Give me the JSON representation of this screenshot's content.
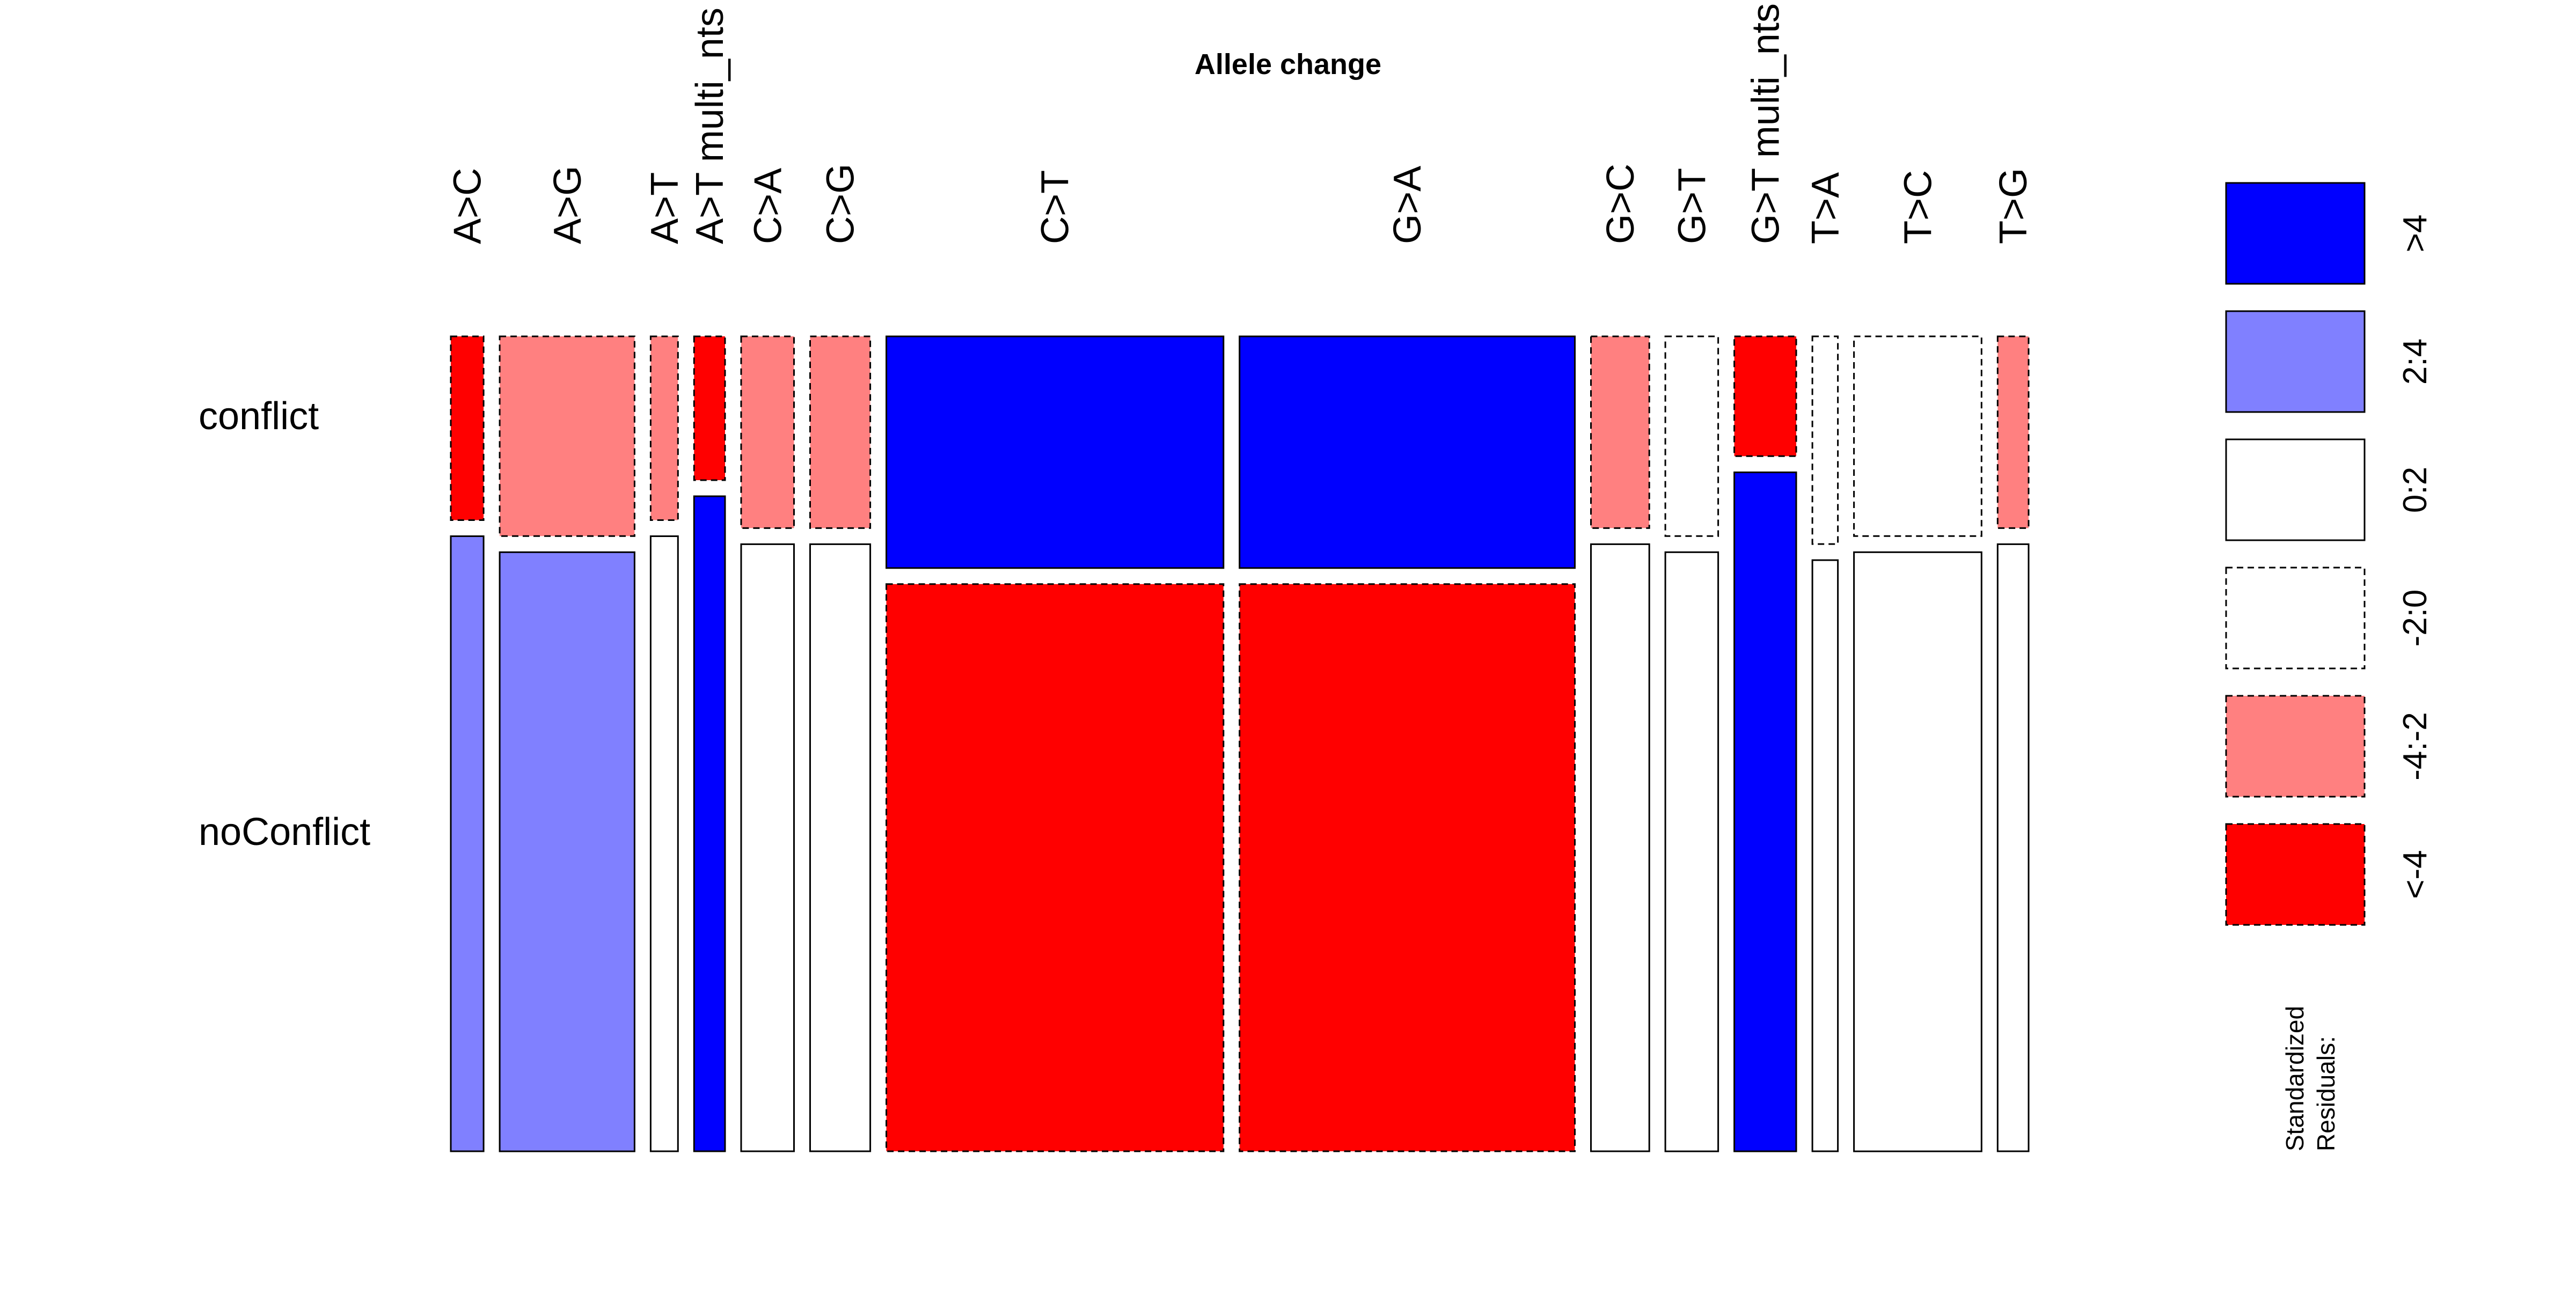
{
  "chart_data": {
    "type": "mosaic",
    "title": "Allele change",
    "column_variable_categories": [
      "A>C",
      "A>G",
      "A>T",
      "A>T multi_nts",
      "C>A",
      "C>G",
      "C>T",
      "G>A",
      "G>C",
      "G>T",
      "G>T multi_nts",
      "T>A",
      "T>C",
      "T>G"
    ],
    "row_variable_categories": [
      "conflict",
      "noConflict"
    ],
    "column_share_of_total": [
      0.018,
      0.074,
      0.015,
      0.017,
      0.029,
      0.033,
      0.185,
      0.184,
      0.032,
      0.029,
      0.034,
      0.014,
      0.07,
      0.017
    ],
    "conflict_share_within_column": [
      0.23,
      0.25,
      0.23,
      0.18,
      0.24,
      0.24,
      0.29,
      0.29,
      0.24,
      0.25,
      0.15,
      0.26,
      0.25,
      0.24
    ],
    "residual_class": [
      [
        "<-4",
        "2:4"
      ],
      [
        "-4:-2",
        "2:4"
      ],
      [
        "-4:-2",
        "0:2"
      ],
      [
        "<-4",
        ">4"
      ],
      [
        "-4:-2",
        "0:2"
      ],
      [
        "-4:-2",
        "0:2"
      ],
      [
        ">4",
        "<-4"
      ],
      [
        ">4",
        "<-4"
      ],
      [
        "-4:-2",
        "0:2"
      ],
      [
        "-2:0",
        "0:2"
      ],
      [
        "<-4",
        ">4"
      ],
      [
        "-2:0",
        "0:2"
      ],
      [
        "-2:0",
        "0:2"
      ],
      [
        "-4:-2",
        "0:2"
      ]
    ],
    "legend": {
      "title": "Standardized Residuals:",
      "title_lines": [
        "Standardized",
        "Residuals:"
      ],
      "entries": [
        {
          "label": ">4",
          "fill": "#0000FF",
          "dashed": false
        },
        {
          "label": "2:4",
          "fill": "#8080FF",
          "dashed": false
        },
        {
          "label": "0:2",
          "fill": "#FFFFFF",
          "dashed": false
        },
        {
          "label": "-2:0",
          "fill": "#FFFFFF",
          "dashed": true
        },
        {
          "label": "-4:-2",
          "fill": "#FF8080",
          "dashed": true
        },
        {
          "label": "<-4",
          "fill": "#FF0000",
          "dashed": true
        }
      ]
    }
  }
}
